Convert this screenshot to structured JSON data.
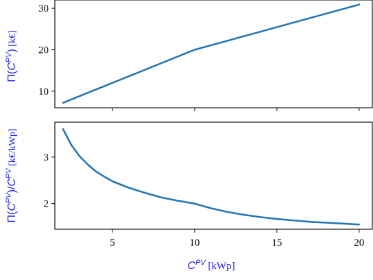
{
  "colors": {
    "line": "#2475b4",
    "axis_label": "#1d1df2",
    "frame": "#000000",
    "background": "#ffffff"
  },
  "chart_data": [
    {
      "type": "line",
      "title": "",
      "xlabel": "",
      "ylabel_parts": {
        "lead": "Π(",
        "sym": "C",
        "sup": "PV",
        "tail": ")",
        "unit": " [k€]"
      },
      "xlim": [
        1.5,
        20.8
      ],
      "ylim": [
        6,
        32
      ],
      "grid": false,
      "xticks": [
        5,
        10,
        15,
        20
      ],
      "xtick_labels_visible": false,
      "yticks": [
        10,
        20,
        30
      ],
      "ytick_labels": [
        "10",
        "20",
        "30"
      ],
      "series": [
        {
          "x": [
            2,
            10,
            20
          ],
          "y": [
            7.2,
            20.0,
            30.9
          ]
        }
      ]
    },
    {
      "type": "line",
      "title": "",
      "xlabel_parts": {
        "sym": "C",
        "sup": "PV",
        "unit": " [kWp]"
      },
      "ylabel_parts": {
        "lead": "Π(",
        "sym": "C",
        "sup": "PV",
        "tail": ")/",
        "sym2": "C",
        "sup2": "PV",
        "unit": " [k€/kWp]"
      },
      "xlim": [
        1.5,
        20.8
      ],
      "ylim": [
        1.45,
        3.75
      ],
      "grid": false,
      "xticks": [
        5,
        10,
        15,
        20
      ],
      "xtick_labels": [
        "5",
        "10",
        "15",
        "20"
      ],
      "yticks": [
        2,
        3
      ],
      "ytick_labels": [
        "2",
        "3"
      ],
      "series": [
        {
          "x": [
            2,
            2.5,
            3,
            3.5,
            4,
            4.5,
            5,
            6,
            7,
            8,
            9,
            10,
            11,
            12,
            13,
            14,
            15,
            16,
            17,
            18,
            19,
            20
          ],
          "y": [
            3.6,
            3.26,
            3.02,
            2.84,
            2.69,
            2.58,
            2.48,
            2.34,
            2.23,
            2.13,
            2.06,
            2.0,
            1.9,
            1.82,
            1.76,
            1.71,
            1.67,
            1.64,
            1.61,
            1.59,
            1.57,
            1.55
          ]
        }
      ]
    }
  ]
}
